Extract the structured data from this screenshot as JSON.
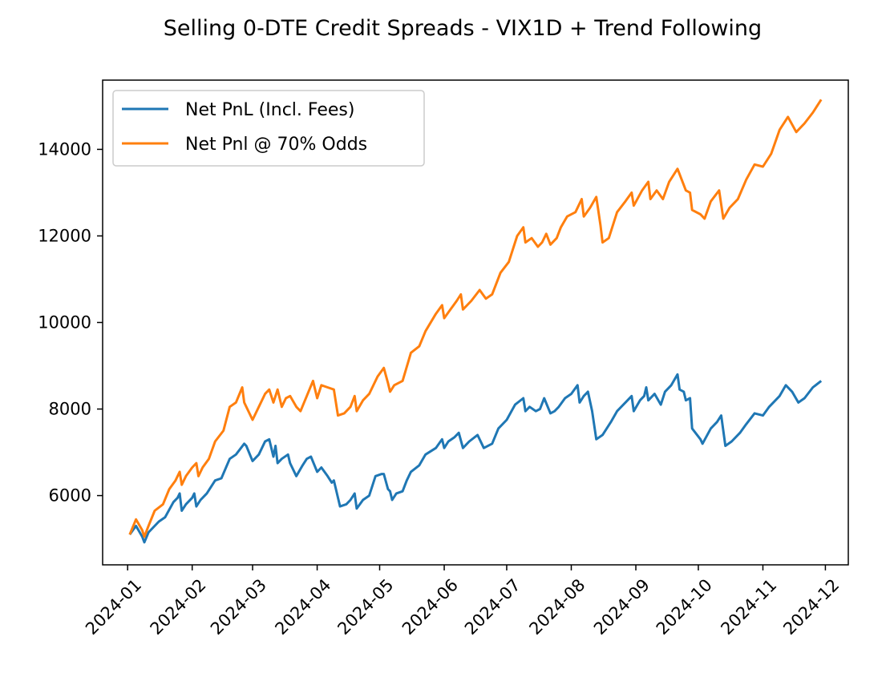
{
  "chart_data": {
    "type": "line",
    "title": "Selling 0-DTE Credit Spreads - VIX1D + Trend Following",
    "xlabel": "",
    "ylabel": "",
    "x_type": "date",
    "xlim": [
      "2023-12-20",
      "2024-12-12"
    ],
    "ylim": [
      4400,
      15600
    ],
    "x_ticks": [
      "2024-01-01",
      "2024-02-01",
      "2024-03-01",
      "2024-04-01",
      "2024-05-01",
      "2024-06-01",
      "2024-07-01",
      "2024-08-01",
      "2024-09-01",
      "2024-10-01",
      "2024-11-01",
      "2024-12-01"
    ],
    "x_tick_labels": [
      "2024-01",
      "2024-02",
      "2024-03",
      "2024-04",
      "2024-05",
      "2024-06",
      "2024-07",
      "2024-08",
      "2024-09",
      "2024-10",
      "2024-11",
      "2024-12"
    ],
    "y_ticks": [
      6000,
      8000,
      10000,
      12000,
      14000
    ],
    "y_tick_labels": [
      "6000",
      "8000",
      "10000",
      "12000",
      "14000"
    ],
    "grid": false,
    "legend_position": "upper-left",
    "series": [
      {
        "name": "Net PnL (Incl. Fees)",
        "color": "#1f77b4",
        "points": [
          [
            "2024-01-02",
            5100
          ],
          [
            "2024-01-05",
            5300
          ],
          [
            "2024-01-08",
            5050
          ],
          [
            "2024-01-09",
            4920
          ],
          [
            "2024-01-11",
            5150
          ],
          [
            "2024-01-16",
            5400
          ],
          [
            "2024-01-19",
            5500
          ],
          [
            "2024-01-23",
            5850
          ],
          [
            "2024-01-25",
            5950
          ],
          [
            "2024-01-26",
            6050
          ],
          [
            "2024-01-27",
            5650
          ],
          [
            "2024-01-29",
            5800
          ],
          [
            "2024-02-01",
            5950
          ],
          [
            "2024-02-02",
            6050
          ],
          [
            "2024-02-03",
            5750
          ],
          [
            "2024-02-05",
            5900
          ],
          [
            "2024-02-08",
            6050
          ],
          [
            "2024-02-12",
            6350
          ],
          [
            "2024-02-15",
            6400
          ],
          [
            "2024-02-19",
            6850
          ],
          [
            "2024-02-22",
            6950
          ],
          [
            "2024-02-26",
            7200
          ],
          [
            "2024-02-27",
            7150
          ],
          [
            "2024-03-01",
            6800
          ],
          [
            "2024-03-04",
            6950
          ],
          [
            "2024-03-07",
            7250
          ],
          [
            "2024-03-09",
            7300
          ],
          [
            "2024-03-11",
            6900
          ],
          [
            "2024-03-12",
            7150
          ],
          [
            "2024-03-13",
            6750
          ],
          [
            "2024-03-15",
            6850
          ],
          [
            "2024-03-18",
            6950
          ],
          [
            "2024-03-19",
            6750
          ],
          [
            "2024-03-22",
            6450
          ],
          [
            "2024-03-25",
            6700
          ],
          [
            "2024-03-27",
            6850
          ],
          [
            "2024-03-29",
            6900
          ],
          [
            "2024-04-01",
            6550
          ],
          [
            "2024-04-03",
            6650
          ],
          [
            "2024-04-06",
            6450
          ],
          [
            "2024-04-08",
            6300
          ],
          [
            "2024-04-09",
            6350
          ],
          [
            "2024-04-12",
            5750
          ],
          [
            "2024-04-15",
            5800
          ],
          [
            "2024-04-17",
            5900
          ],
          [
            "2024-04-19",
            6050
          ],
          [
            "2024-04-20",
            5700
          ],
          [
            "2024-04-23",
            5900
          ],
          [
            "2024-04-26",
            6000
          ],
          [
            "2024-04-29",
            6450
          ],
          [
            "2024-05-02",
            6500
          ],
          [
            "2024-05-03",
            6500
          ],
          [
            "2024-05-05",
            6150
          ],
          [
            "2024-05-06",
            6100
          ],
          [
            "2024-05-07",
            5900
          ],
          [
            "2024-05-09",
            6050
          ],
          [
            "2024-05-12",
            6100
          ],
          [
            "2024-05-14",
            6350
          ],
          [
            "2024-05-16",
            6550
          ],
          [
            "2024-05-20",
            6700
          ],
          [
            "2024-05-23",
            6950
          ],
          [
            "2024-05-28",
            7100
          ],
          [
            "2024-05-31",
            7300
          ],
          [
            "2024-06-01",
            7100
          ],
          [
            "2024-06-03",
            7250
          ],
          [
            "2024-06-06",
            7350
          ],
          [
            "2024-06-08",
            7450
          ],
          [
            "2024-06-10",
            7100
          ],
          [
            "2024-06-13",
            7250
          ],
          [
            "2024-06-17",
            7400
          ],
          [
            "2024-06-20",
            7100
          ],
          [
            "2024-06-24",
            7200
          ],
          [
            "2024-06-27",
            7550
          ],
          [
            "2024-07-01",
            7750
          ],
          [
            "2024-07-05",
            8100
          ],
          [
            "2024-07-09",
            8250
          ],
          [
            "2024-07-10",
            7950
          ],
          [
            "2024-07-12",
            8050
          ],
          [
            "2024-07-15",
            7950
          ],
          [
            "2024-07-17",
            8000
          ],
          [
            "2024-07-19",
            8250
          ],
          [
            "2024-07-22",
            7900
          ],
          [
            "2024-07-24",
            7950
          ],
          [
            "2024-07-26",
            8050
          ],
          [
            "2024-07-29",
            8250
          ],
          [
            "2024-08-01",
            8350
          ],
          [
            "2024-08-04",
            8550
          ],
          [
            "2024-08-05",
            8150
          ],
          [
            "2024-08-07",
            8300
          ],
          [
            "2024-08-09",
            8400
          ],
          [
            "2024-08-11",
            7950
          ],
          [
            "2024-08-13",
            7300
          ],
          [
            "2024-08-16",
            7400
          ],
          [
            "2024-08-20",
            7700
          ],
          [
            "2024-08-23",
            7950
          ],
          [
            "2024-08-27",
            8150
          ],
          [
            "2024-08-30",
            8300
          ],
          [
            "2024-08-31",
            7950
          ],
          [
            "2024-09-03",
            8200
          ],
          [
            "2024-09-05",
            8300
          ],
          [
            "2024-09-06",
            8500
          ],
          [
            "2024-09-07",
            8200
          ],
          [
            "2024-09-10",
            8350
          ],
          [
            "2024-09-13",
            8100
          ],
          [
            "2024-09-15",
            8400
          ],
          [
            "2024-09-18",
            8550
          ],
          [
            "2024-09-21",
            8800
          ],
          [
            "2024-09-22",
            8450
          ],
          [
            "2024-09-24",
            8400
          ],
          [
            "2024-09-25",
            8200
          ],
          [
            "2024-09-27",
            8250
          ],
          [
            "2024-09-28",
            7550
          ],
          [
            "2024-10-02",
            7300
          ],
          [
            "2024-10-03",
            7200
          ],
          [
            "2024-10-07",
            7550
          ],
          [
            "2024-10-10",
            7700
          ],
          [
            "2024-10-12",
            7850
          ],
          [
            "2024-10-14",
            7150
          ],
          [
            "2024-10-17",
            7250
          ],
          [
            "2024-10-21",
            7450
          ],
          [
            "2024-10-24",
            7650
          ],
          [
            "2024-10-28",
            7900
          ],
          [
            "2024-11-01",
            7850
          ],
          [
            "2024-11-04",
            8050
          ],
          [
            "2024-11-09",
            8300
          ],
          [
            "2024-11-12",
            8550
          ],
          [
            "2024-11-15",
            8400
          ],
          [
            "2024-11-18",
            8150
          ],
          [
            "2024-11-21",
            8250
          ],
          [
            "2024-11-25",
            8500
          ],
          [
            "2024-11-29",
            8650
          ]
        ]
      },
      {
        "name": "Net Pnl @ 70% Odds",
        "color": "#ff7f0e",
        "points": [
          [
            "2024-01-02",
            5100
          ],
          [
            "2024-01-05",
            5450
          ],
          [
            "2024-01-08",
            5200
          ],
          [
            "2024-01-09",
            5050
          ],
          [
            "2024-01-11",
            5300
          ],
          [
            "2024-01-14",
            5650
          ],
          [
            "2024-01-18",
            5800
          ],
          [
            "2024-01-21",
            6150
          ],
          [
            "2024-01-24",
            6350
          ],
          [
            "2024-01-26",
            6550
          ],
          [
            "2024-01-27",
            6250
          ],
          [
            "2024-01-29",
            6450
          ],
          [
            "2024-02-01",
            6650
          ],
          [
            "2024-02-03",
            6750
          ],
          [
            "2024-02-04",
            6450
          ],
          [
            "2024-02-06",
            6650
          ],
          [
            "2024-02-09",
            6850
          ],
          [
            "2024-02-12",
            7250
          ],
          [
            "2024-02-16",
            7500
          ],
          [
            "2024-02-19",
            8050
          ],
          [
            "2024-02-22",
            8150
          ],
          [
            "2024-02-25",
            8500
          ],
          [
            "2024-02-26",
            8150
          ],
          [
            "2024-03-01",
            7750
          ],
          [
            "2024-03-04",
            8050
          ],
          [
            "2024-03-07",
            8350
          ],
          [
            "2024-03-09",
            8450
          ],
          [
            "2024-03-11",
            8150
          ],
          [
            "2024-03-13",
            8450
          ],
          [
            "2024-03-15",
            8050
          ],
          [
            "2024-03-17",
            8250
          ],
          [
            "2024-03-19",
            8300
          ],
          [
            "2024-03-22",
            8050
          ],
          [
            "2024-03-24",
            7950
          ],
          [
            "2024-03-27",
            8300
          ],
          [
            "2024-03-30",
            8650
          ],
          [
            "2024-04-01",
            8250
          ],
          [
            "2024-04-03",
            8550
          ],
          [
            "2024-04-06",
            8500
          ],
          [
            "2024-04-09",
            8450
          ],
          [
            "2024-04-11",
            7850
          ],
          [
            "2024-04-14",
            7900
          ],
          [
            "2024-04-17",
            8050
          ],
          [
            "2024-04-19",
            8300
          ],
          [
            "2024-04-20",
            7950
          ],
          [
            "2024-04-23",
            8200
          ],
          [
            "2024-04-26",
            8350
          ],
          [
            "2024-04-30",
            8750
          ],
          [
            "2024-05-03",
            8950
          ],
          [
            "2024-05-05",
            8600
          ],
          [
            "2024-05-06",
            8400
          ],
          [
            "2024-05-08",
            8550
          ],
          [
            "2024-05-12",
            8650
          ],
          [
            "2024-05-16",
            9300
          ],
          [
            "2024-05-20",
            9450
          ],
          [
            "2024-05-23",
            9800
          ],
          [
            "2024-05-28",
            10200
          ],
          [
            "2024-05-31",
            10400
          ],
          [
            "2024-06-01",
            10100
          ],
          [
            "2024-06-04",
            10300
          ],
          [
            "2024-06-07",
            10500
          ],
          [
            "2024-06-09",
            10650
          ],
          [
            "2024-06-10",
            10300
          ],
          [
            "2024-06-14",
            10500
          ],
          [
            "2024-06-18",
            10750
          ],
          [
            "2024-06-21",
            10550
          ],
          [
            "2024-06-24",
            10650
          ],
          [
            "2024-06-28",
            11150
          ],
          [
            "2024-07-02",
            11400
          ],
          [
            "2024-07-06",
            12000
          ],
          [
            "2024-07-09",
            12200
          ],
          [
            "2024-07-10",
            11850
          ],
          [
            "2024-07-13",
            11950
          ],
          [
            "2024-07-16",
            11750
          ],
          [
            "2024-07-18",
            11850
          ],
          [
            "2024-07-20",
            12050
          ],
          [
            "2024-07-22",
            11800
          ],
          [
            "2024-07-25",
            11950
          ],
          [
            "2024-07-27",
            12200
          ],
          [
            "2024-07-30",
            12450
          ],
          [
            "2024-08-03",
            12550
          ],
          [
            "2024-08-06",
            12850
          ],
          [
            "2024-08-07",
            12450
          ],
          [
            "2024-08-10",
            12650
          ],
          [
            "2024-08-13",
            12900
          ],
          [
            "2024-08-15",
            12250
          ],
          [
            "2024-08-16",
            11850
          ],
          [
            "2024-08-19",
            11950
          ],
          [
            "2024-08-23",
            12550
          ],
          [
            "2024-08-27",
            12800
          ],
          [
            "2024-08-30",
            13000
          ],
          [
            "2024-08-31",
            12700
          ],
          [
            "2024-09-04",
            13050
          ],
          [
            "2024-09-07",
            13250
          ],
          [
            "2024-09-08",
            12850
          ],
          [
            "2024-09-11",
            13050
          ],
          [
            "2024-09-14",
            12850
          ],
          [
            "2024-09-17",
            13250
          ],
          [
            "2024-09-21",
            13550
          ],
          [
            "2024-09-23",
            13300
          ],
          [
            "2024-09-25",
            13050
          ],
          [
            "2024-09-27",
            13000
          ],
          [
            "2024-09-28",
            12600
          ],
          [
            "2024-10-02",
            12500
          ],
          [
            "2024-10-04",
            12400
          ],
          [
            "2024-10-07",
            12800
          ],
          [
            "2024-10-11",
            13050
          ],
          [
            "2024-10-13",
            12400
          ],
          [
            "2024-10-16",
            12650
          ],
          [
            "2024-10-20",
            12850
          ],
          [
            "2024-10-24",
            13300
          ],
          [
            "2024-10-28",
            13650
          ],
          [
            "2024-11-01",
            13600
          ],
          [
            "2024-11-05",
            13900
          ],
          [
            "2024-11-09",
            14450
          ],
          [
            "2024-11-13",
            14750
          ],
          [
            "2024-11-17",
            14400
          ],
          [
            "2024-11-21",
            14600
          ],
          [
            "2024-11-25",
            14850
          ],
          [
            "2024-11-29",
            15150
          ]
        ]
      }
    ]
  }
}
